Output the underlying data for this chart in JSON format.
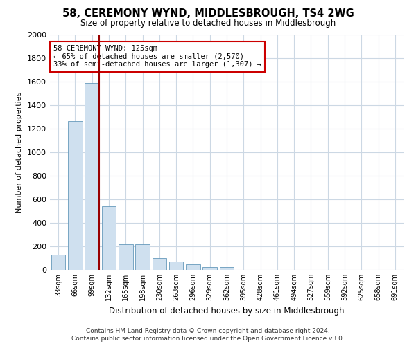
{
  "title": "58, CEREMONY WYND, MIDDLESBROUGH, TS4 2WG",
  "subtitle": "Size of property relative to detached houses in Middlesbrough",
  "xlabel": "Distribution of detached houses by size in Middlesbrough",
  "ylabel": "Number of detached properties",
  "footer_line1": "Contains HM Land Registry data © Crown copyright and database right 2024.",
  "footer_line2": "Contains public sector information licensed under the Open Government Licence v3.0.",
  "annotation_title": "58 CEREMONY WYND: 125sqm",
  "annotation_line1": "← 65% of detached houses are smaller (2,570)",
  "annotation_line2": "33% of semi-detached houses are larger (1,307) →",
  "bar_color": "#cfe0ef",
  "bar_edge_color": "#6699bb",
  "vline_color": "#990000",
  "annotation_box_edgecolor": "#cc0000",
  "categories": [
    "33sqm",
    "66sqm",
    "99sqm",
    "132sqm",
    "165sqm",
    "198sqm",
    "230sqm",
    "263sqm",
    "296sqm",
    "329sqm",
    "362sqm",
    "395sqm",
    "428sqm",
    "461sqm",
    "494sqm",
    "527sqm",
    "559sqm",
    "592sqm",
    "625sqm",
    "658sqm",
    "691sqm"
  ],
  "values": [
    130,
    1265,
    1590,
    540,
    215,
    215,
    100,
    70,
    45,
    25,
    25,
    0,
    0,
    0,
    0,
    0,
    0,
    0,
    0,
    0,
    0
  ],
  "ylim": [
    0,
    2000
  ],
  "yticks": [
    0,
    200,
    400,
    600,
    800,
    1000,
    1200,
    1400,
    1600,
    1800,
    2000
  ],
  "vline_x": 2.42,
  "background_color": "#ffffff",
  "grid_color": "#ccd8e4"
}
